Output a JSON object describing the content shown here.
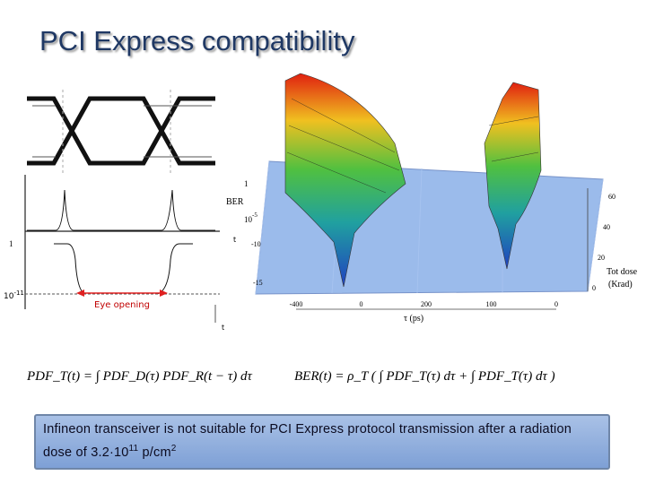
{
  "title": "PCI Express compatibility",
  "eye_diagram": {
    "y_top": "1",
    "y_bottom_base": "10",
    "y_bottom_exp": "-11",
    "eye_opening": "Eye opening",
    "t_axis_1": "t",
    "t_axis_2": "t"
  },
  "ber_plot": {
    "z_top": "1",
    "z_label": "BER",
    "z_mid_base": "10",
    "z_mid_exp": "-5",
    "z_ticks": [
      "-10",
      "-15"
    ],
    "x_ticks": [
      "-400",
      "0",
      "200",
      "100",
      "0"
    ],
    "x_label": "τ (ps)",
    "dose_ticks": [
      "60",
      "40",
      "20",
      "0"
    ],
    "dose_label_1": "Tot dose",
    "dose_label_2": "(Krad)"
  },
  "formulas": {
    "pdf": "PDF_T(t) = ∫ PDF_D(τ) PDF_R(t − τ) dτ",
    "ber": "BER(t) = ρ_T ( ∫ PDF_T(τ) dτ + ∫ PDF_T(τ) dτ )"
  },
  "note": {
    "text": "Infineon transceiver is not suitable for PCI Express protocol transmission after a radiation dose of ",
    "exp_base": "3.2·10",
    "exp": "11",
    "unit": " p/cm",
    "unit_exp": "2"
  }
}
